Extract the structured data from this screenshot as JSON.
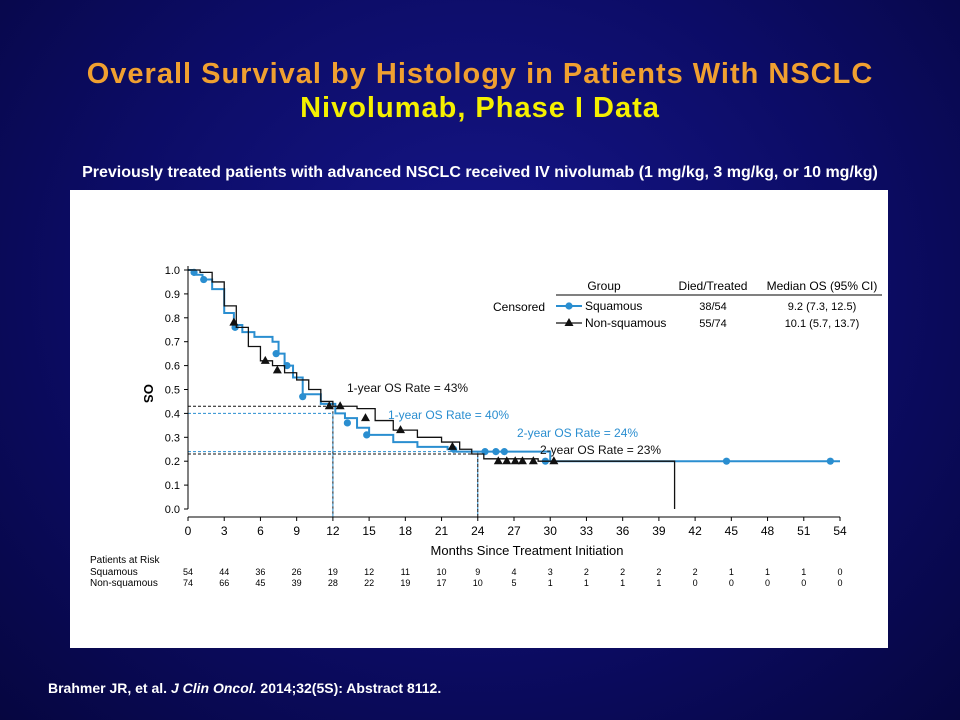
{
  "title": "Overall Survival by Histology in Patients With NSCLC",
  "subtitle": "Nivolumab, Phase I Data",
  "description": "Previously treated patients with advanced NSCLC received IV nivolumab (1 mg/kg, 3 mg/kg, or 10 mg/kg)",
  "citation": {
    "authors": "Brahmer JR, et al.",
    "journal": "J Clin Oncol.",
    "details": "2014;32(5S): Abstract 8112."
  },
  "colors": {
    "squamous": "#2a8ed0",
    "non_squamous": "#111111",
    "orange_title": "#f0a030",
    "yellow_title": "#f5f000"
  },
  "chart_data": {
    "type": "line",
    "step": true,
    "xlabel": "Months Since Treatment Initiation",
    "ylabel": "OS",
    "xlim": [
      0,
      54
    ],
    "ylim": [
      0,
      1.0
    ],
    "x_ticks": [
      "0",
      "3",
      "6",
      "9",
      "12",
      "15",
      "18",
      "21",
      "24",
      "27",
      "30",
      "33",
      "36",
      "39",
      "42",
      "45",
      "48",
      "51",
      "54"
    ],
    "y_ticks": [
      "0.0",
      "0.1",
      "0.2",
      "0.3",
      "0.4",
      "0.5",
      "0.6",
      "0.7",
      "0.8",
      "0.9",
      "1.0"
    ],
    "legend": {
      "censored_label": "Censored",
      "headers": [
        "Group",
        "Died/Treated",
        "Median OS (95% CI)"
      ],
      "rows": [
        {
          "group": "Squamous",
          "died_treated": "38/54",
          "median_os": "9.2 (7.3, 12.5)"
        },
        {
          "group": "Non-squamous",
          "died_treated": "55/74",
          "median_os": "10.1 (5.7, 13.7)"
        }
      ]
    },
    "series": [
      {
        "name": "Squamous",
        "points": [
          [
            0,
            1.0
          ],
          [
            0.5,
            0.98
          ],
          [
            1.2,
            0.96
          ],
          [
            2,
            0.92
          ],
          [
            3,
            0.82
          ],
          [
            3.8,
            0.77
          ],
          [
            4.5,
            0.74
          ],
          [
            5.5,
            0.72
          ],
          [
            7,
            0.7
          ],
          [
            7.5,
            0.65
          ],
          [
            8,
            0.6
          ],
          [
            8.7,
            0.55
          ],
          [
            9.5,
            0.48
          ],
          [
            11,
            0.44
          ],
          [
            12.2,
            0.4
          ],
          [
            13,
            0.38
          ],
          [
            14,
            0.34
          ],
          [
            15,
            0.31
          ],
          [
            17,
            0.28
          ],
          [
            19,
            0.26
          ],
          [
            21.5,
            0.25
          ],
          [
            22,
            0.24
          ],
          [
            30,
            0.2
          ],
          [
            54,
            0.2
          ]
        ],
        "censored": [
          [
            0.5,
            0.99
          ],
          [
            1.3,
            0.96
          ],
          [
            3.9,
            0.76
          ],
          [
            7.3,
            0.65
          ],
          [
            8.2,
            0.6
          ],
          [
            9.5,
            0.47
          ],
          [
            13.2,
            0.36
          ],
          [
            14.8,
            0.31
          ],
          [
            22,
            0.25
          ],
          [
            24.6,
            0.24
          ],
          [
            25.5,
            0.24
          ],
          [
            26.2,
            0.24
          ],
          [
            29.6,
            0.2
          ],
          [
            44.6,
            0.2
          ],
          [
            53.2,
            0.2
          ]
        ]
      },
      {
        "name": "Non-squamous",
        "points": [
          [
            0,
            1.0
          ],
          [
            1,
            0.99
          ],
          [
            2,
            0.95
          ],
          [
            3,
            0.85
          ],
          [
            4,
            0.76
          ],
          [
            5,
            0.68
          ],
          [
            6,
            0.62
          ],
          [
            7,
            0.6
          ],
          [
            8,
            0.57
          ],
          [
            9,
            0.54
          ],
          [
            10,
            0.5
          ],
          [
            11,
            0.45
          ],
          [
            12,
            0.43
          ],
          [
            14,
            0.42
          ],
          [
            15.5,
            0.37
          ],
          [
            17,
            0.33
          ],
          [
            19,
            0.3
          ],
          [
            21,
            0.28
          ],
          [
            22.5,
            0.25
          ],
          [
            23.5,
            0.23
          ],
          [
            24.5,
            0.21
          ],
          [
            29,
            0.2
          ],
          [
            40.3,
            0.2
          ],
          [
            40.3,
            0.0
          ]
        ],
        "censored": [
          [
            3.8,
            0.78
          ],
          [
            6.4,
            0.62
          ],
          [
            7.4,
            0.58
          ],
          [
            11.7,
            0.43
          ],
          [
            12.6,
            0.43
          ],
          [
            14.7,
            0.38
          ],
          [
            17.6,
            0.33
          ],
          [
            21.9,
            0.26
          ],
          [
            25.7,
            0.2
          ],
          [
            26.4,
            0.2
          ],
          [
            27.1,
            0.2
          ],
          [
            27.7,
            0.2
          ],
          [
            28.6,
            0.2
          ],
          [
            30.3,
            0.2
          ]
        ]
      }
    ],
    "annotations": [
      {
        "text": "1-year OS Rate = 43%",
        "x": 12,
        "y": 0.43,
        "series": "Non-squamous"
      },
      {
        "text": "1-year OS Rate = 40%",
        "x": 12,
        "y": 0.4,
        "series": "Squamous"
      },
      {
        "text": "2-year OS Rate = 24%",
        "x": 24,
        "y": 0.24,
        "series": "Squamous"
      },
      {
        "text": "2-year OS Rate = 23%",
        "x": 24,
        "y": 0.23,
        "series": "Non-squamous"
      }
    ],
    "at_risk": {
      "title": "Patients at Risk",
      "rows": [
        {
          "label": "Squamous",
          "values": [
            "54",
            "44",
            "36",
            "26",
            "19",
            "12",
            "11",
            "10",
            "9",
            "4",
            "3",
            "2",
            "2",
            "2",
            "2",
            "1",
            "1",
            "1",
            "0"
          ]
        },
        {
          "label": "Non-squamous",
          "values": [
            "74",
            "66",
            "45",
            "39",
            "28",
            "22",
            "19",
            "17",
            "10",
            "5",
            "1",
            "1",
            "1",
            "1",
            "0",
            "0",
            "0",
            "0",
            "0"
          ]
        }
      ]
    }
  }
}
